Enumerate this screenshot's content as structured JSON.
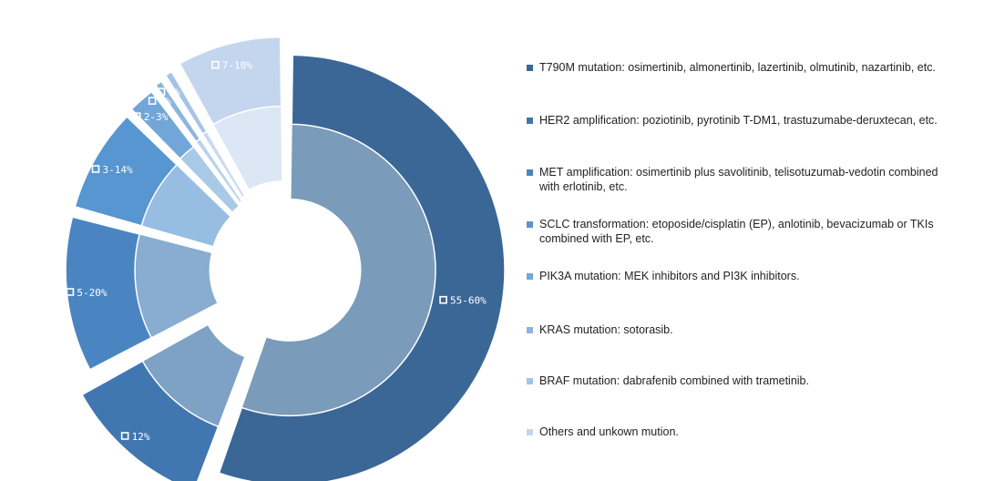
{
  "chart_data": {
    "type": "pie",
    "variant": "exploded-doughnut",
    "slices": [
      {
        "label": "55-60%",
        "value": 57.5,
        "color": "#3b6796",
        "inner": "#7b9bbb",
        "legend": "T790M mutation: osimertinib, almonertinib, lazertinib, olmutinib, nazartinib, etc."
      },
      {
        "label": "12%",
        "value": 12,
        "color": "#4177b0",
        "inner": "#7ea1c6",
        "legend": "HER2 amplification: poziotinib, pyrotinib T-DM1, trastuzumabe-deruxtecan, etc."
      },
      {
        "label": "5-20%",
        "value": 12.5,
        "color": "#4a85c1",
        "inner": "#89acd1",
        "legend": "MET amplification: osimertinib plus savolitinib, telisotuzumab-vedotin combined with erlotinib, etc."
      },
      {
        "label": "3-14%",
        "value": 8.5,
        "color": "#5796d0",
        "inner": "#97bde2",
        "legend": "SCLC transformation: etoposide/cisplatin (EP), anlotinib, bevacizumab or TKIs combined with EP, etc."
      },
      {
        "label": "2-3%",
        "value": 2.5,
        "color": "#73a6d8",
        "inner": "#a9c9e7",
        "legend": "PIK3A mutation: MEK inhibitors and PI3K inhibitors."
      },
      {
        "label": "1%",
        "value": 1,
        "color": "#8bb4de",
        "inner": "#b9d2ec",
        "legend": "KRAS mutation: sotorasib."
      },
      {
        "label": "1%",
        "value": 1,
        "color": "#a4c3e6",
        "inner": "#c7daf0",
        "legend": "BRAF mutation: dabrafenib combined with trametinib."
      },
      {
        "label": "7-10%",
        "value": 8.5,
        "color": "#c4d6ee",
        "inner": "#dce7f5",
        "legend": "Others and unkown mution."
      }
    ]
  }
}
